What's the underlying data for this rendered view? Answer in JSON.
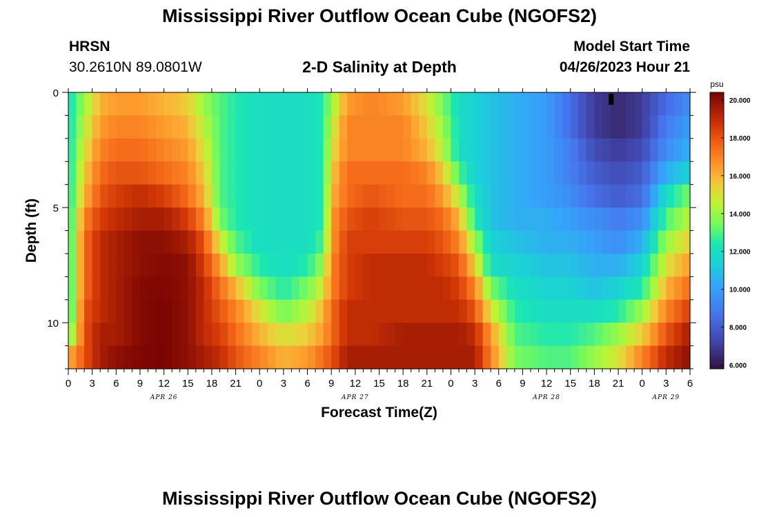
{
  "header": {
    "title": "Mississippi River Outflow Ocean Cube (NGOFS2)",
    "station": "HRSN",
    "coords": "30.2610N  89.0801W",
    "subtitle": "2-D Salinity at Depth",
    "model_start_label": "Model Start Time",
    "model_start_value": "04/26/2023 Hour 21"
  },
  "footer": {
    "title": "Mississippi River Outflow Ocean Cube (NGOFS2)"
  },
  "chart_data": {
    "type": "heatmap",
    "xlabel": "Forecast Time(Z)",
    "ylabel": "Depth (ft)",
    "x_ticks": [
      "0",
      "3",
      "6",
      "9",
      "12",
      "15",
      "18",
      "21",
      "0",
      "3",
      "6",
      "9",
      "12",
      "15",
      "18",
      "21",
      "0",
      "3",
      "6",
      "9",
      "12",
      "15",
      "18",
      "21",
      "0",
      "3",
      "6"
    ],
    "day_labels": [
      {
        "text": "APR 26",
        "hour": 12
      },
      {
        "text": "APR 27",
        "hour": 36
      },
      {
        "text": "APR 28",
        "hour": 60
      },
      {
        "text": "APR 29",
        "hour": 75
      }
    ],
    "xlim_hours": [
      0,
      78
    ],
    "y_ticks": [
      "0",
      "5",
      "10"
    ],
    "ylim_ft": [
      0,
      12
    ],
    "depth_levels": 12,
    "colorbar": {
      "unit": "psu",
      "range": [
        5.8,
        20.4
      ],
      "ticks": [
        "6.000",
        "8.000",
        "10.000",
        "12.000",
        "14.000",
        "16.000",
        "18.000",
        "20.000"
      ]
    },
    "salinity_profiles_psu": [
      {
        "hour": 0,
        "values": [
          12,
          12,
          12,
          12,
          12,
          12,
          12,
          12,
          12,
          12,
          13,
          16
        ]
      },
      {
        "hour": 2,
        "values": [
          14,
          14.5,
          15,
          15.5,
          16,
          17,
          17.5,
          17.5,
          17.5,
          18,
          18,
          18
        ]
      },
      {
        "hour": 4,
        "values": [
          16,
          16.5,
          17,
          17.5,
          18,
          18.5,
          19,
          19,
          19,
          19,
          19.5,
          19.5
        ]
      },
      {
        "hour": 6,
        "values": [
          16.5,
          17,
          17.5,
          18,
          18.5,
          19,
          19.5,
          19.5,
          19.5,
          19.5,
          19.5,
          20
        ]
      },
      {
        "hour": 9,
        "values": [
          16.5,
          17,
          17.5,
          18,
          19,
          19.5,
          20,
          20,
          20.2,
          20.2,
          20.2,
          20.3
        ]
      },
      {
        "hour": 12,
        "values": [
          16,
          16.5,
          17,
          17.5,
          18.5,
          19.5,
          20,
          20.2,
          20.3,
          20.4,
          20.4,
          20.4
        ]
      },
      {
        "hour": 15,
        "values": [
          15.5,
          16,
          16.5,
          17,
          17.5,
          18.5,
          19.5,
          20,
          20,
          20,
          20,
          20
        ]
      },
      {
        "hour": 17,
        "values": [
          14,
          14.5,
          15,
          15.5,
          16,
          17,
          18,
          18.5,
          19,
          19,
          19,
          19.5
        ]
      },
      {
        "hour": 19,
        "values": [
          13,
          13,
          13,
          13,
          13,
          13.5,
          15,
          16.5,
          17.5,
          18,
          18.5,
          19
        ]
      },
      {
        "hour": 21,
        "values": [
          12.5,
          12.5,
          12.5,
          12.5,
          12.5,
          12.5,
          13,
          14,
          16,
          17,
          17.5,
          18
        ]
      },
      {
        "hour": 24,
        "values": [
          12,
          12,
          12,
          12,
          12,
          12,
          12,
          12.5,
          13.5,
          15,
          16,
          17
        ]
      },
      {
        "hour": 27,
        "values": [
          12,
          12,
          12,
          12,
          12,
          12,
          12,
          12,
          12.5,
          13.5,
          15,
          16
        ]
      },
      {
        "hour": 30,
        "values": [
          12,
          12,
          12,
          12,
          12,
          12,
          12,
          12.5,
          13.5,
          14.5,
          15.5,
          16.5
        ]
      },
      {
        "hour": 32,
        "values": [
          12.5,
          12.5,
          12.5,
          12.5,
          12.5,
          12.5,
          13,
          14,
          15,
          16,
          16.5,
          17.5
        ]
      },
      {
        "hour": 33,
        "values": [
          14,
          14.5,
          15,
          15.5,
          16,
          16.5,
          16.5,
          17,
          17,
          17.5,
          17.5,
          18
        ]
      },
      {
        "hour": 35,
        "values": [
          16.5,
          17,
          17,
          17.5,
          17.5,
          18,
          18.5,
          18.5,
          18.5,
          19,
          19,
          19.5
        ]
      },
      {
        "hour": 38,
        "values": [
          17,
          17,
          17,
          17.5,
          18,
          18.5,
          18.5,
          19,
          19,
          19,
          19,
          19.5
        ]
      },
      {
        "hour": 42,
        "values": [
          16.5,
          17,
          17,
          17.5,
          17.5,
          18,
          18.5,
          19,
          19,
          19,
          19.5,
          19.5
        ]
      },
      {
        "hour": 45,
        "values": [
          15,
          15.5,
          16,
          17,
          17.5,
          18,
          18.5,
          19,
          19,
          19,
          19.5,
          19.5
        ]
      },
      {
        "hour": 47,
        "values": [
          13.5,
          14,
          14.5,
          15.5,
          16.5,
          17.5,
          18,
          18.5,
          19,
          19,
          19.5,
          19.5
        ]
      },
      {
        "hour": 49,
        "values": [
          12,
          12,
          12,
          13,
          14.5,
          16,
          17,
          18,
          18.5,
          19,
          19.5,
          19.5
        ]
      },
      {
        "hour": 51,
        "values": [
          11.5,
          11.5,
          11.5,
          11.5,
          12,
          12.5,
          14,
          15.5,
          17,
          18,
          19,
          19.5
        ]
      },
      {
        "hour": 53,
        "values": [
          11,
          11,
          11,
          11,
          11,
          11,
          11.5,
          12,
          13.5,
          15,
          16.5,
          17
        ]
      },
      {
        "hour": 56,
        "values": [
          10.5,
          10.5,
          10.5,
          10.5,
          10.5,
          10.5,
          11,
          11.5,
          12,
          12.5,
          13,
          13.5
        ]
      },
      {
        "hour": 60,
        "values": [
          10,
          10,
          10,
          10,
          10,
          10.5,
          10.5,
          11,
          11.5,
          12,
          12.5,
          13
        ]
      },
      {
        "hour": 63,
        "values": [
          8.5,
          8.5,
          9,
          9,
          9.5,
          10,
          10.5,
          11,
          11.5,
          12,
          12.5,
          13
        ]
      },
      {
        "hour": 66,
        "values": [
          7,
          7,
          7.5,
          8,
          8.5,
          9.5,
          10,
          10.5,
          11,
          12,
          13,
          14
        ]
      },
      {
        "hour": 69,
        "values": [
          6.5,
          6.5,
          7,
          7.5,
          8,
          9,
          9.5,
          10.5,
          11.5,
          12.5,
          14,
          15
        ]
      },
      {
        "hour": 72,
        "values": [
          7,
          7,
          7.5,
          8,
          8.5,
          9.5,
          10.5,
          11.5,
          12.5,
          14,
          15.5,
          17
        ]
      },
      {
        "hour": 75,
        "values": [
          8.5,
          9,
          9.5,
          10.5,
          12,
          13,
          14,
          15,
          16,
          17,
          18,
          19
        ]
      },
      {
        "hour": 78,
        "values": [
          9.5,
          10,
          10.5,
          11.5,
          13.5,
          14.5,
          15.5,
          16.5,
          17.5,
          18.5,
          19.5,
          20
        ]
      }
    ]
  }
}
